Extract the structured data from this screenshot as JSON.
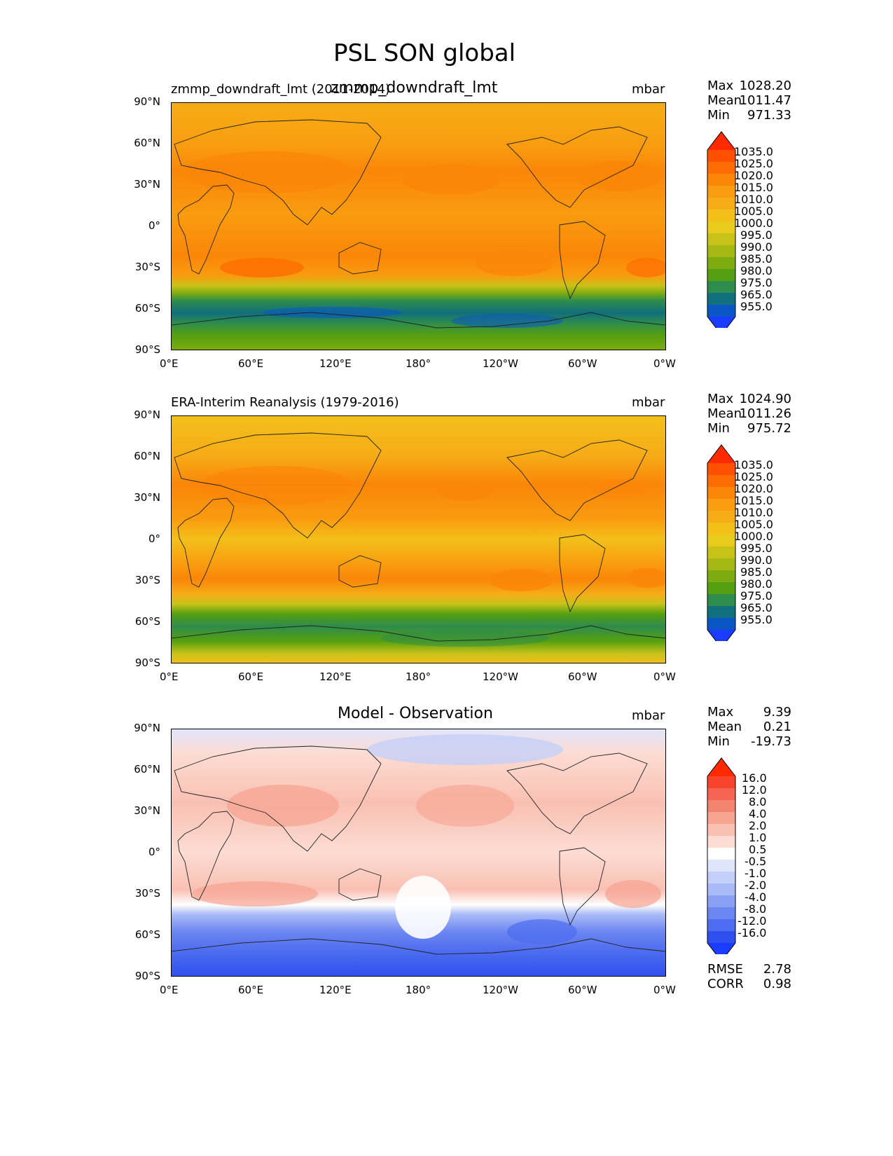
{
  "figure": {
    "title": "PSL SON global"
  },
  "axes": {
    "lat_labels": [
      "90°N",
      "60°N",
      "30°N",
      "0°",
      "30°S",
      "60°S",
      "90°S"
    ],
    "lon_labels": [
      "0°E",
      "60°E",
      "120°E",
      "180°",
      "120°W",
      "60°W",
      "0°W"
    ]
  },
  "panels": [
    {
      "id": "model",
      "left_title": "zmmp_downdraft_lmt (2011-2014)",
      "center_title": "zmmp_downdraft_lmt",
      "units": "mbar",
      "stats": {
        "max_label": "Max",
        "max": "1028.20",
        "mean_label": "Mean",
        "mean": "1011.47",
        "min_label": "Min",
        "min": "971.33"
      },
      "colorbar": {
        "labels": [
          "1035.0",
          "1025.0",
          "1020.0",
          "1015.0",
          "1010.0",
          "1005.0",
          "1000.0",
          "995.0",
          "990.0",
          "985.0",
          "980.0",
          "975.0",
          "965.0",
          "955.0"
        ],
        "colors": [
          "#ff2a00",
          "#ff4f00",
          "#fe6d03",
          "#fb8608",
          "#f99c0f",
          "#f6ac17",
          "#f3c01a",
          "#e9cb1d",
          "#c8c219",
          "#a5b813",
          "#7eab0f",
          "#55a010",
          "#2e8c4c",
          "#10707c",
          "#0a56c4",
          "#1a3cff"
        ]
      }
    },
    {
      "id": "obs",
      "left_title": "ERA-Interim Reanalysis (1979-2016)",
      "units": "mbar",
      "stats": {
        "max_label": "Max",
        "max": "1024.90",
        "mean_label": "Mean",
        "mean": "1011.26",
        "min_label": "Min",
        "min": "975.72"
      },
      "colorbar": {
        "labels": [
          "1035.0",
          "1025.0",
          "1020.0",
          "1015.0",
          "1010.0",
          "1005.0",
          "1000.0",
          "995.0",
          "990.0",
          "985.0",
          "980.0",
          "975.0",
          "965.0",
          "955.0"
        ],
        "colors": [
          "#ff2a00",
          "#ff4f00",
          "#fe6d03",
          "#fb8608",
          "#f99c0f",
          "#f6ac17",
          "#f3c01a",
          "#e9cb1d",
          "#c8c219",
          "#a5b813",
          "#7eab0f",
          "#55a010",
          "#2e8c4c",
          "#10707c",
          "#0a56c4",
          "#1a3cff"
        ]
      }
    },
    {
      "id": "diff",
      "center_title": "Model - Observation",
      "units": "mbar",
      "stats": {
        "max_label": "Max",
        "max": "9.39",
        "mean_label": "Mean",
        "mean": "0.21",
        "min_label": "Min",
        "min": "-19.73"
      },
      "extra_stats": {
        "rmse_label": "RMSE",
        "rmse": "2.78",
        "corr_label": "CORR",
        "corr": "0.98"
      },
      "colorbar": {
        "labels": [
          "16.0",
          "12.0",
          "8.0",
          "4.0",
          "2.0",
          "1.0",
          "0.5",
          "-0.5",
          "-1.0",
          "-2.0",
          "-4.0",
          "-8.0",
          "-12.0",
          "-16.0"
        ],
        "colors": [
          "#ff2a00",
          "#f8432d",
          "#f46450",
          "#f38470",
          "#f6a390",
          "#f9c0b2",
          "#fcdcd3",
          "#ffffff",
          "#dfe6fb",
          "#c4d0f9",
          "#a9baf6",
          "#8aa0f3",
          "#6b86f1",
          "#4d6cef",
          "#2f50ef",
          "#1a3cff"
        ]
      }
    }
  ]
}
